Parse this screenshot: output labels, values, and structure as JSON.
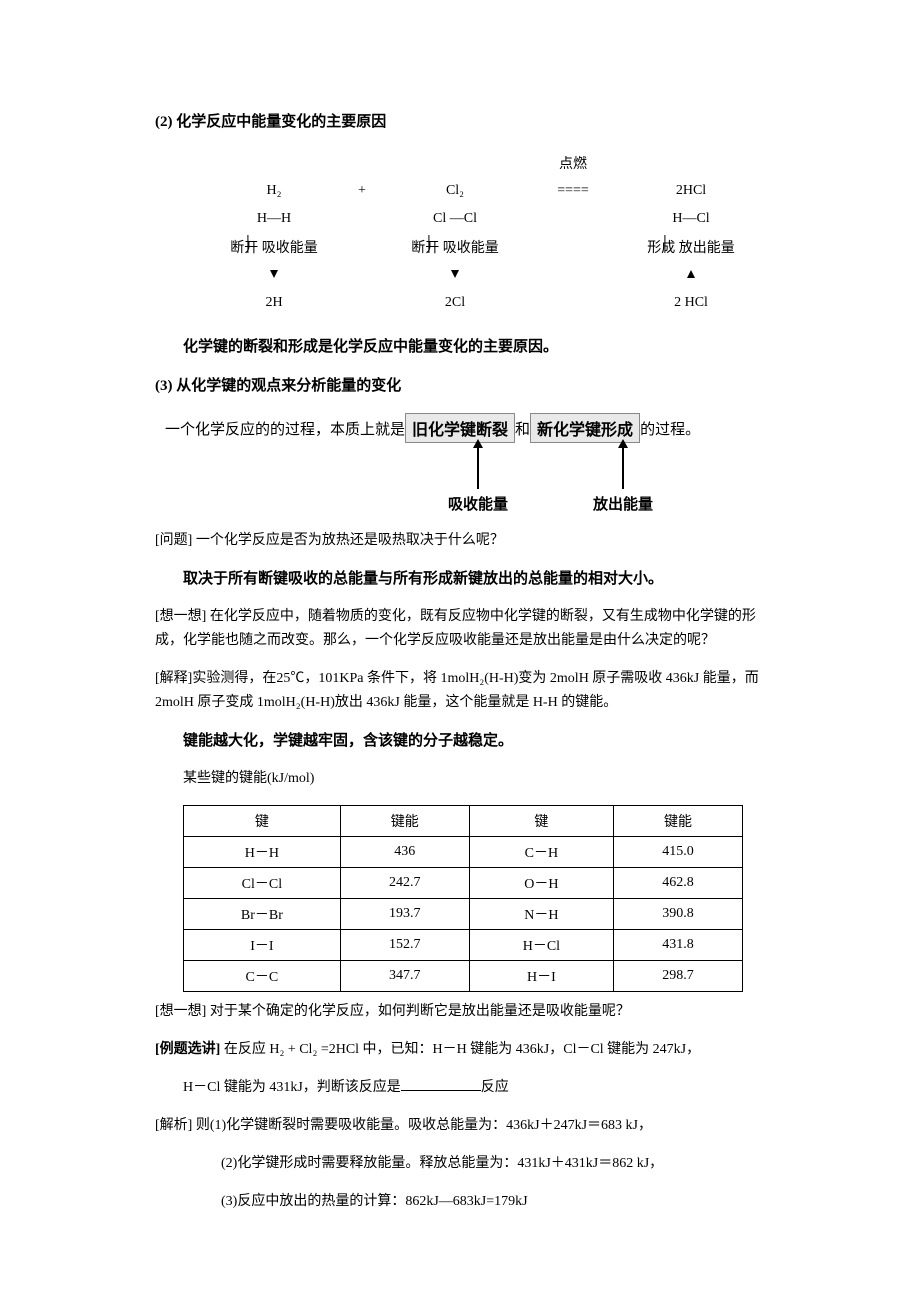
{
  "section2_title": "(2) 化学反应中能量变化的主要原因",
  "reaction": {
    "ignite": "点燃",
    "h2": "H₂",
    "plus": "+",
    "cl2": "Cl₂",
    "arrow": "====",
    "product": "2HCl",
    "hh_bond": "H—H",
    "clcl_bond": "Cl —Cl",
    "hcl_bond": "H—Cl",
    "break_label": "断开  吸收能量",
    "form_label": "形成  放出能量",
    "atoms_h": "2H",
    "atoms_cl": "2Cl",
    "atoms_hcl": "2 HCl"
  },
  "statement_bond": "化学键的断裂和形成是化学反应中能量变化的主要原因。",
  "section3_title": "(3) 从化学键的观点来分析能量的变化",
  "essence": {
    "prefix": "一个化学反应的的过程，本质上就是",
    "box1": "旧化学键断裂",
    "and": "和",
    "box2": "新化学键形成",
    "suffix": "的过程。",
    "absorb": "吸收能量",
    "release": "放出能量"
  },
  "q1_label": "[问题]",
  "q1_text": " 一个化学反应是否为放热还是吸热取决于什么呢？",
  "answer_bold": "取决于所有断键吸收的总能量与所有形成新键放出的总能量的相对大小。",
  "think1_label": "[想一想]",
  "think1_text": " 在化学反应中，随着物质的变化，既有反应物中化学键的断裂，又有生成物中化学键的形成，化学能也随之而改变。那么，一个化学反应吸收能量还是放出能量是由什么决定的呢？",
  "explain_label": "[解释]",
  "explain_text": "实验测得，在25℃，101KPa 条件下，将 1molH₂(H-H)变为 2molH 原子需吸收 436kJ 能量，而 2molH 原子变成 1molH₂(H-H)放出 436kJ 能量，这个能量就是 H-H 的键能。",
  "bond_stable": "键能越大化，学键越牢固，含该键的分子越稳定。",
  "table_title": "某些键的键能(kJ/mol)",
  "table": {
    "headers": [
      "键",
      "键能",
      "键",
      "键能"
    ],
    "rows": [
      [
        "H－H",
        "436",
        "C－H",
        "415.0"
      ],
      [
        "Cl－Cl",
        "242.7",
        "O－H",
        "462.8"
      ],
      [
        "Br－Br",
        "193.7",
        "N－H",
        "390.8"
      ],
      [
        "I－I",
        "152.7",
        "H－Cl",
        "431.8"
      ],
      [
        "C－C",
        "347.7",
        "H－I",
        "298.7"
      ]
    ]
  },
  "think2_label": "[想一想]",
  "think2_text": " 对于某个确定的化学反应，如何判断它是放出能量还是吸收能量呢？",
  "example_label": "[例题选讲]",
  "example_text1": " 在反应 H₂ + Cl₂  =2HCl 中，已知：H－H  键能为 436kJ，Cl－Cl 键能为 247kJ，",
  "example_text2": "H－Cl 键能为 431kJ，判断该反应是",
  "example_text3": "反应",
  "analysis_label": "[解析]",
  "step1": " 则(1)化学键断裂时需要吸收能量。吸收总能量为：436kJ＋247kJ＝683 kJ，",
  "step2": "(2)化学键形成时需要释放能量。释放总能量为：431kJ＋431kJ＝862 kJ，",
  "step3": "(3)反应中放出的热量的计算：862kJ—683kJ=179kJ"
}
